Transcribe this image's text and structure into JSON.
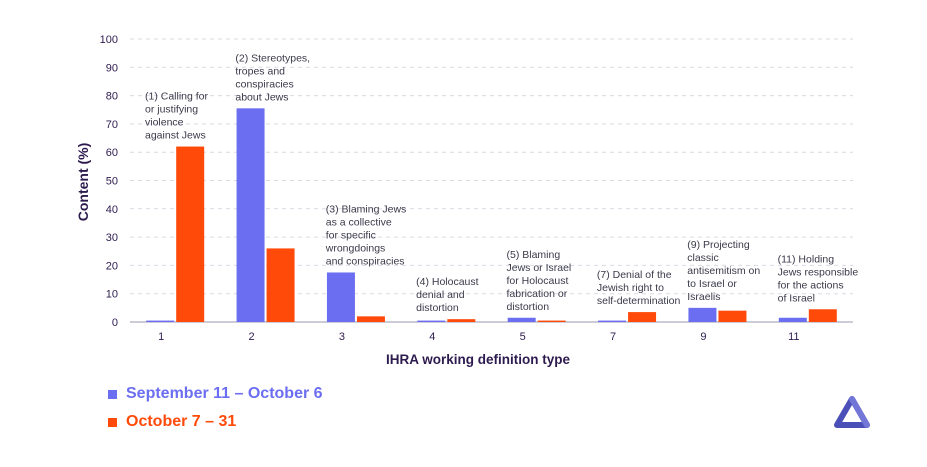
{
  "chart_data": {
    "type": "bar",
    "title": "",
    "xlabel": "IHRA working definition type",
    "ylabel": "Content (%)",
    "ylim": [
      0,
      100
    ],
    "yticks": [
      0,
      10,
      20,
      30,
      40,
      50,
      60,
      70,
      80,
      90,
      100
    ],
    "grid": "horizontal dashed",
    "categories": [
      "1",
      "2",
      "3",
      "4",
      "5",
      "7",
      "9",
      "11"
    ],
    "category_annotations": [
      [
        "(1) Calling for",
        "or justifying",
        "violence",
        "against Jews"
      ],
      [
        "(2) Stereotypes,",
        "tropes and",
        "conspiracies",
        "about Jews"
      ],
      [
        "(3) Blaming Jews",
        "as a collective",
        "for specific",
        "wrongdoings",
        "and conspiracies"
      ],
      [
        "(4) Holocaust",
        "denial and",
        "distortion"
      ],
      [
        "(5) Blaming",
        "Jews or Israel",
        "for Holocaust",
        "fabrication or",
        "distortion"
      ],
      [
        "(7) Denial of the",
        "Jewish right to",
        "self-determination"
      ],
      [
        "(9) Projecting",
        "classic",
        "antisemitism on",
        "to Israel or",
        "Israelis"
      ],
      [
        "(11) Holding",
        "Jews responsible",
        "for the actions",
        "of Israel"
      ]
    ],
    "series": [
      {
        "name": "September 11 – October 6",
        "color": "#6b6ef0",
        "values": [
          0.5,
          75.5,
          17.5,
          0.5,
          1.5,
          0.5,
          5,
          1.5
        ]
      },
      {
        "name": "October 7 – 31",
        "color": "#ff4a0a",
        "values": [
          62,
          26,
          2,
          1,
          0.5,
          3.5,
          4,
          4.5
        ]
      }
    ],
    "legend_position": "bottom-left"
  },
  "colors": {
    "axis_text": "#2d1b4e",
    "grid": "#d9d9e3",
    "logo": "#4b4fb8"
  },
  "logo_icon": "triangle-logo-icon"
}
